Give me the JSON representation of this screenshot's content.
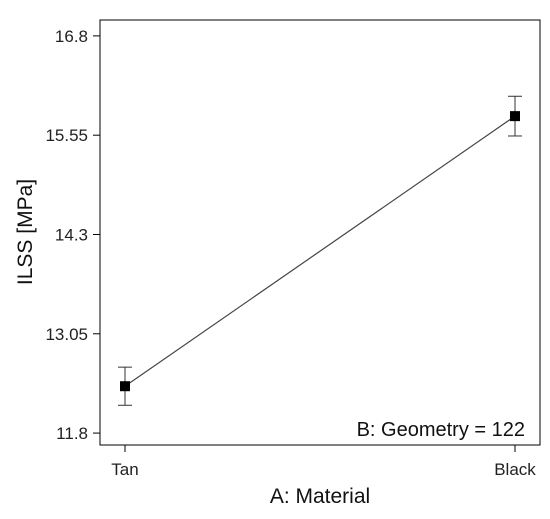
{
  "chart_data": {
    "type": "line",
    "title": "",
    "xlabel": "A: Material",
    "ylabel": "ILSS [MPa]",
    "categories": [
      "Tan",
      "Black"
    ],
    "series": [
      {
        "values": [
          12.39,
          15.79
        ],
        "error_low": [
          12.15,
          15.54
        ],
        "error_high": [
          12.63,
          16.04
        ],
        "color": "#000000"
      }
    ],
    "ylim": [
      11.65,
      17.0
    ],
    "yticks": [
      11.8,
      13.05,
      14.3,
      15.55,
      16.8
    ],
    "ytick_labels": [
      "11.8",
      "13.05",
      "14.3",
      "15.55",
      "16.8"
    ],
    "annotation": "B: Geometry = 122",
    "grid": false
  }
}
